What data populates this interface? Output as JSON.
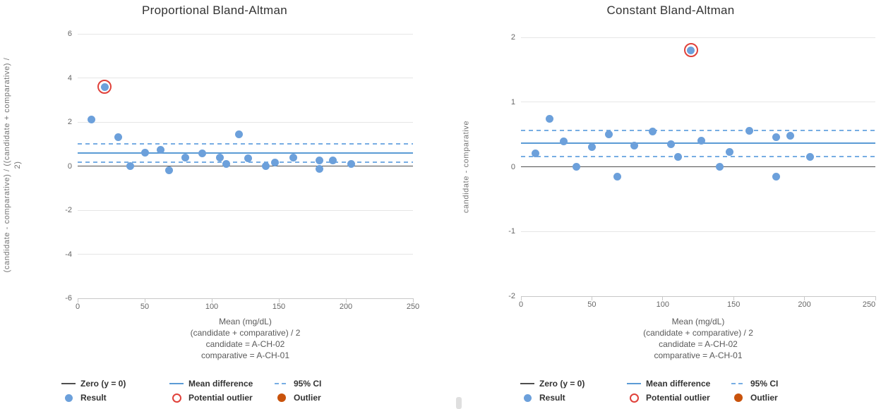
{
  "colors": {
    "result_point": "#6CA0DB",
    "mean_line": "#5B9BD5",
    "ci_line": "#77ADE3",
    "zero_line": "#4F4F4F",
    "potential_outlier": "#E0413A",
    "outlier": "#C9530C",
    "grid": "#E6E6E6",
    "axis": "#C8C8C8",
    "title_text": "#333333",
    "tick_text": "#666666",
    "caption_text": "#5A5A5A",
    "axis_title_text": "#757575",
    "legend_text": "#333333"
  },
  "legend": {
    "rows": [
      [
        {
          "label": "Zero (y = 0)",
          "symbol": "line-dark"
        },
        {
          "label": "Mean difference",
          "symbol": "line-blue"
        },
        {
          "label": "95% CI",
          "symbol": "dashed-blue"
        }
      ],
      [
        {
          "label": "Result",
          "symbol": "dot-blue"
        },
        {
          "label": "Potential outlier",
          "symbol": "ring-red"
        },
        {
          "label": "Outlier",
          "symbol": "dot-orange"
        }
      ]
    ]
  },
  "chart_data": [
    {
      "type": "scatter",
      "title": "Proportional Bland-Altman",
      "ylabel": "(candidate - comparative) / ((candidate + comparative) / 2)",
      "ylabel_lines": [
        "(candidate - comparative) / ((candidate + comparative) /",
        "2)"
      ],
      "xlabel_lines": [
        "Mean (mg/dL)",
        "(candidate + comparative) / 2",
        "candidate = A-CH-02",
        "comparative = A-CH-01"
      ],
      "xlim": [
        0,
        250
      ],
      "ylim": [
        -6,
        6
      ],
      "x_ticks": [
        0,
        50,
        100,
        150,
        200,
        250
      ],
      "y_ticks": [
        6,
        4,
        2,
        0,
        -2,
        -4,
        -6
      ],
      "grid": true,
      "legend_position": "bottom",
      "zero_line_y": 0,
      "mean_difference": 0.6,
      "ci_upper": 1.0,
      "ci_lower": 0.18,
      "points": [
        [
          10,
          2.1
        ],
        [
          20,
          3.6
        ],
        [
          30,
          1.3
        ],
        [
          39,
          0.0
        ],
        [
          50,
          0.6
        ],
        [
          62,
          0.75
        ],
        [
          68,
          -0.2
        ],
        [
          80,
          0.4
        ],
        [
          93,
          0.57
        ],
        [
          106,
          0.37
        ],
        [
          111,
          0.1
        ],
        [
          120,
          1.45
        ],
        [
          127,
          0.35
        ],
        [
          140,
          0.0
        ],
        [
          147,
          0.17
        ],
        [
          161,
          0.4
        ],
        [
          180,
          0.27
        ],
        [
          180,
          -0.13
        ],
        [
          190,
          0.25
        ],
        [
          204,
          0.1
        ]
      ],
      "potential_outlier": [
        20,
        3.6
      ]
    },
    {
      "type": "scatter",
      "title": "Constant Bland-Altman",
      "ylabel": "candidate - comparative",
      "ylabel_lines": [
        "candidate - comparative"
      ],
      "xlabel_lines": [
        "Mean (mg/dL)",
        "(candidate + comparative) / 2",
        "candidate = A-CH-02",
        "comparative = A-CH-01"
      ],
      "xlim": [
        0,
        250
      ],
      "ylim": [
        -2,
        2
      ],
      "x_ticks": [
        0,
        50,
        100,
        150,
        200,
        250
      ],
      "y_ticks": [
        2,
        1,
        0,
        -1,
        -2
      ],
      "grid": true,
      "legend_position": "bottom",
      "zero_line_y": 0,
      "mean_difference": 0.36,
      "ci_upper": 0.56,
      "ci_lower": 0.16,
      "points": [
        [
          10,
          0.21
        ],
        [
          20,
          0.74
        ],
        [
          30,
          0.39
        ],
        [
          39,
          0.0
        ],
        [
          50,
          0.3
        ],
        [
          62,
          0.5
        ],
        [
          68,
          -0.15
        ],
        [
          80,
          0.33
        ],
        [
          93,
          0.55
        ],
        [
          106,
          0.35
        ],
        [
          111,
          0.15
        ],
        [
          120,
          1.8
        ],
        [
          127,
          0.4
        ],
        [
          140,
          0.0
        ],
        [
          147,
          0.23
        ],
        [
          161,
          0.56
        ],
        [
          180,
          0.46
        ],
        [
          180,
          -0.15
        ],
        [
          190,
          0.48
        ],
        [
          204,
          0.15
        ]
      ],
      "potential_outlier": [
        120,
        1.8
      ]
    }
  ]
}
